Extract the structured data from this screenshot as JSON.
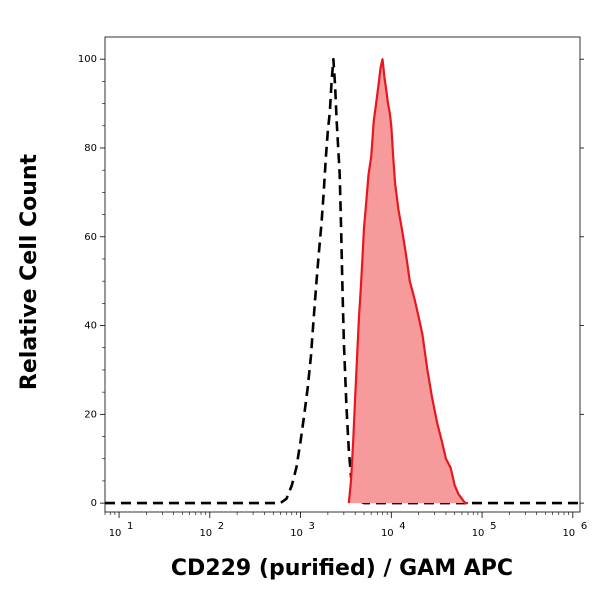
{
  "chart_data": {
    "type": "area",
    "xlabel": "CD229 (purified) / GAM APC",
    "ylabel": "Relative Cell Count",
    "xscale": "log",
    "xlim": [
      7,
      1200000
    ],
    "ylim": [
      -2,
      105
    ],
    "yticks": [
      {
        "value": 0,
        "label": "0"
      },
      {
        "value": 20,
        "label": "20"
      },
      {
        "value": 40,
        "label": "40"
      },
      {
        "value": 60,
        "label": "60"
      },
      {
        "value": 80,
        "label": "80"
      },
      {
        "value": 100,
        "label": "100"
      }
    ],
    "xticks": [
      {
        "value": 10,
        "base": "10",
        "exp": "1"
      },
      {
        "value": 100,
        "base": "10",
        "exp": "2"
      },
      {
        "value": 1000,
        "base": "10",
        "exp": "3"
      },
      {
        "value": 10000,
        "base": "10",
        "exp": "4"
      },
      {
        "value": 100000,
        "base": "10",
        "exp": "5"
      },
      {
        "value": 1000000,
        "base": "10",
        "exp": "6"
      }
    ],
    "grid": false,
    "series": [
      {
        "style": "dashed",
        "color": "#000000",
        "fill": "none",
        "x": [
          7,
          400,
          600,
          700,
          800,
          900,
          1000,
          1100,
          1200,
          1300,
          1400,
          1500,
          1600,
          1700,
          1800,
          1900,
          2000,
          2100,
          2200,
          2300,
          2400,
          2500,
          2600,
          2700,
          2800,
          2900,
          3000,
          3200,
          3400,
          3600,
          3800,
          4000,
          5000,
          8000,
          20000,
          1200000
        ],
        "y": [
          0,
          0,
          0,
          1,
          4,
          8,
          14,
          20,
          26,
          33,
          42,
          50,
          57,
          63,
          70,
          78,
          84,
          88,
          95,
          100,
          94,
          86,
          80,
          74,
          62,
          48,
          36,
          22,
          12,
          6,
          3,
          1,
          0,
          0,
          0,
          0
        ]
      },
      {
        "style": "solid",
        "color": "#e8171d",
        "fill": "#f79a9c",
        "x": [
          3400,
          3600,
          3800,
          4000,
          4200,
          4400,
          4600,
          4800,
          5000,
          5300,
          5600,
          6000,
          6400,
          6800,
          7200,
          7600,
          8000,
          8400,
          8800,
          9200,
          9600,
          10000,
          10500,
          11000,
          12000,
          13000,
          14000,
          15000,
          16000,
          18000,
          20000,
          22000,
          25000,
          28000,
          32000,
          36000,
          40000,
          45000,
          50000,
          55000,
          60000,
          65000,
          70000
        ],
        "y": [
          0,
          5,
          14,
          24,
          33,
          42,
          48,
          55,
          62,
          68,
          74,
          78,
          86,
          90,
          94,
          98,
          100,
          96,
          93,
          90,
          88,
          85,
          78,
          72,
          66,
          62,
          58,
          54,
          50,
          46,
          42,
          38,
          30,
          24,
          18,
          14,
          10,
          8,
          4,
          2,
          1,
          0,
          0
        ]
      }
    ]
  }
}
